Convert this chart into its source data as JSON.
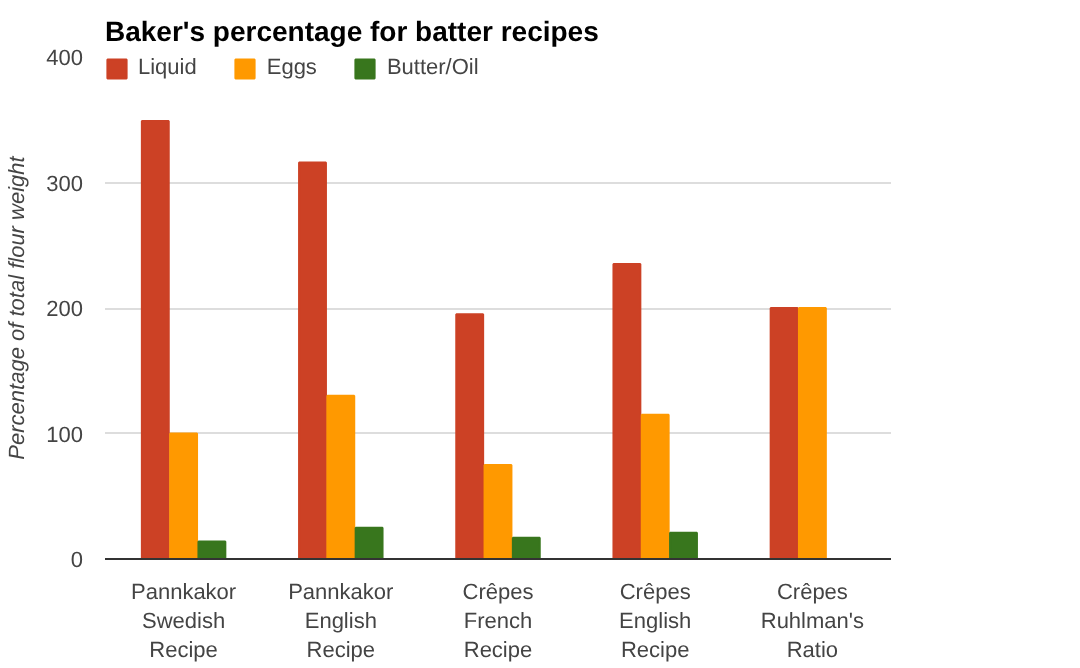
{
  "chart_data": {
    "type": "bar",
    "title": "Baker's percentage for batter recipes",
    "ylabel": "Percentage of total flour weight",
    "categories": [
      "Pannkakor Swedish Recipe",
      "Pannkakor English Recipe",
      "Crêpes French Recipe",
      "Crêpes English Recipe",
      "Crêpes Ruhlman's Ratio"
    ],
    "series": [
      {
        "name": "Liquid",
        "color": "#cc4125",
        "values": [
          349,
          316,
          195,
          235,
          200
        ]
      },
      {
        "name": "Eggs",
        "color": "#ff9900",
        "values": [
          100,
          130,
          75,
          115,
          200
        ]
      },
      {
        "name": "Butter/Oil",
        "color": "#38761d",
        "values": [
          14,
          25,
          17,
          21,
          null
        ]
      }
    ],
    "ylim": [
      0,
      400
    ],
    "yticks": [
      0,
      100,
      200,
      300,
      400
    ],
    "grid": "y",
    "legend": "top left"
  }
}
